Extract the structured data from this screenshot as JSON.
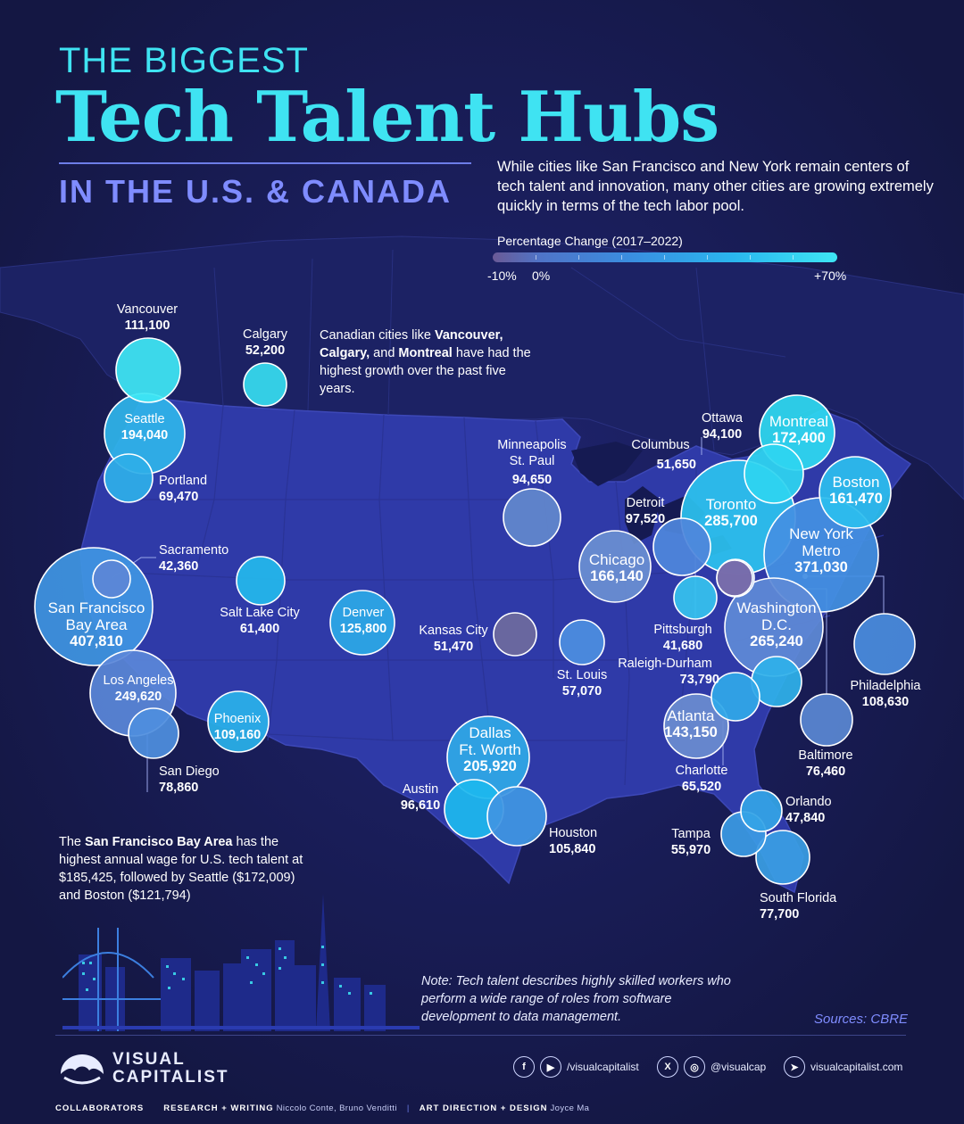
{
  "title": {
    "line1": "THE BIGGEST",
    "line2": "Tech Talent Hubs",
    "line3": "IN THE U.S. & CANADA"
  },
  "intro": "While cities like San Francisco and New York remain centers of tech talent and innovation, many other cities are growing extremely quickly in terms of the tech labor pool.",
  "legend": {
    "title": "Percentage Change (2017–2022)",
    "min_label": "-10%",
    "zero_label": "0%",
    "max_label": "+70%",
    "min_value": -10,
    "max_value": 70,
    "colors": [
      "#6a5a96",
      "#4f74c8",
      "#3a8ee0",
      "#2ab6ee",
      "#3ee6f4"
    ]
  },
  "notes": {
    "canada_pre": "Canadian cities like ",
    "canada_b1": "Vancouver,",
    "canada_b2": "Calgary,",
    "canada_mid": " and ",
    "canada_b3": "Montreal",
    "canada_post": " have had the highest growth over the past five years.",
    "sf_pre": "The ",
    "sf_bold": "San Francisco Bay Area",
    "sf_post": " has the highest annual wage for U.S. tech talent at $185,425, followed by Seattle ($172,009) and Boston ($121,794)"
  },
  "cities": [
    {
      "name": "Vancouver",
      "value": "111,100",
      "color": "#3ee6f4"
    },
    {
      "name": "Calgary",
      "value": "52,200",
      "color": "#36dcef"
    },
    {
      "name": "Seattle",
      "value": "194,040",
      "color": "#2fb4ea"
    },
    {
      "name": "Portland",
      "value": "69,470",
      "color": "#2eaee8"
    },
    {
      "name": "Sacramento",
      "value": "42,360",
      "color": "#5c86d6"
    },
    {
      "name": "San Francisco Bay Area",
      "value": "407,810",
      "color": "#3f94e2"
    },
    {
      "name": "Salt Lake City",
      "value": "61,400",
      "color": "#23b8ec"
    },
    {
      "name": "Denver",
      "value": "125,800",
      "color": "#2ca8e6"
    },
    {
      "name": "Los Angeles",
      "value": "249,620",
      "color": "#5a86d8"
    },
    {
      "name": "San Diego",
      "value": "78,860",
      "color": "#4f8ede"
    },
    {
      "name": "Phoenix",
      "value": "109,160",
      "color": "#2ab0ea"
    },
    {
      "name": "Minneapolis St. Paul",
      "value": "94,650",
      "color": "#6288cc"
    },
    {
      "name": "Kansas City",
      "value": "51,470",
      "color": "#6e6a9e"
    },
    {
      "name": "Chicago",
      "value": "166,140",
      "color": "#6b8fd2"
    },
    {
      "name": "St. Louis",
      "value": "57,070",
      "color": "#4c8ee0"
    },
    {
      "name": "Dallas Ft. Worth",
      "value": "205,920",
      "color": "#2fa8e6"
    },
    {
      "name": "Austin",
      "value": "96,610",
      "color": "#1db8ee"
    },
    {
      "name": "Houston",
      "value": "105,840",
      "color": "#3f96e2"
    },
    {
      "name": "Detroit",
      "value": "97,520",
      "color": "#4f86dc"
    },
    {
      "name": "Columbus",
      "value": "51,650",
      "color": "#36c2ee"
    },
    {
      "name": "Pittsburgh",
      "value": "41,680",
      "color": "#5a88d6"
    },
    {
      "name": "Toronto",
      "value": "285,700",
      "color": "#2cc2ee"
    },
    {
      "name": "Ottawa",
      "value": "94,100",
      "color": "#2ed4f0"
    },
    {
      "name": "Montreal",
      "value": "172,400",
      "color": "#2ed8f0"
    },
    {
      "name": "Boston",
      "value": "161,470",
      "color": "#2cbdee"
    },
    {
      "name": "New York Metro",
      "value": "371,030",
      "color": "#4490e2"
    },
    {
      "name": "Philadelphia",
      "value": "108,630",
      "color": "#4a8cde"
    },
    {
      "name": "Washington D.C.",
      "value": "265,240",
      "color": "#5f8ad6"
    },
    {
      "name": "Baltimore",
      "value": "76,460",
      "color": "#5a86d2"
    },
    {
      "name": "Raleigh-Durham",
      "value": "73,790",
      "color": "#2fb0ea"
    },
    {
      "name": "Atlanta",
      "value": "143,150",
      "color": "#6a8cd0"
    },
    {
      "name": "Charlotte",
      "value": "65,520",
      "color": "#30a8e8"
    },
    {
      "name": "Orlando",
      "value": "47,840",
      "color": "#34a4e6"
    },
    {
      "name": "Tampa",
      "value": "55,970",
      "color": "#3b9ae4"
    },
    {
      "name": "South Florida",
      "value": "77,700",
      "color": "#3a9ee4"
    },
    {
      "name": "Unlabeled hub",
      "value": "",
      "color": "#7a6aa8"
    }
  ],
  "labels": {
    "vancouver": {
      "name": "Vancouver",
      "value": "111,100"
    },
    "calgary": {
      "name": "Calgary",
      "value": "52,200"
    },
    "seattle": {
      "name": "Seattle",
      "value": "194,040"
    },
    "portland": {
      "name": "Portland",
      "value": "69,470"
    },
    "sacramento": {
      "name": "Sacramento",
      "value": "42,360"
    },
    "sf": {
      "name1": "San Francisco",
      "name2": "Bay Area",
      "value": "407,810"
    },
    "slc": {
      "name": "Salt Lake City",
      "value": "61,400"
    },
    "denver": {
      "name": "Denver",
      "value": "125,800"
    },
    "la": {
      "name": "Los Angeles",
      "value": "249,620"
    },
    "sandiego": {
      "name": "San Diego",
      "value": "78,860"
    },
    "phoenix": {
      "name": "Phoenix",
      "value": "109,160"
    },
    "minneapolis": {
      "name1": "Minneapolis",
      "name2": "St. Paul",
      "value": "94,650"
    },
    "kansas": {
      "name": "Kansas City",
      "value": "51,470"
    },
    "chicago": {
      "name": "Chicago",
      "value": "166,140"
    },
    "stlouis": {
      "name": "St. Louis",
      "value": "57,070"
    },
    "dallas": {
      "name1": "Dallas",
      "name2": "Ft. Worth",
      "value": "205,920"
    },
    "austin": {
      "name": "Austin",
      "value": "96,610"
    },
    "houston": {
      "name": "Houston",
      "value": "105,840"
    },
    "detroit": {
      "name": "Detroit",
      "value": "97,520"
    },
    "columbus": {
      "name": "Columbus",
      "value": "51,650"
    },
    "pittsburgh": {
      "name": "Pittsburgh",
      "value": "41,680"
    },
    "toronto": {
      "name": "Toronto",
      "value": "285,700"
    },
    "ottawa": {
      "name": "Ottawa",
      "value": "94,100"
    },
    "montreal": {
      "name": "Montreal",
      "value": "172,400"
    },
    "boston": {
      "name": "Boston",
      "value": "161,470"
    },
    "newyork": {
      "name1": "New York",
      "name2": "Metro",
      "value": "371,030"
    },
    "philadelphia": {
      "name": "Philadelphia",
      "value": "108,630"
    },
    "washington": {
      "name1": "Washington",
      "name2": "D.C.",
      "value": "265,240"
    },
    "baltimore": {
      "name": "Baltimore",
      "value": "76,460"
    },
    "raleigh": {
      "name": "Raleigh-Durham",
      "value": "73,790"
    },
    "atlanta": {
      "name": "Atlanta",
      "value": "143,150"
    },
    "charlotte": {
      "name": "Charlotte",
      "value": "65,520"
    },
    "orlando": {
      "name": "Orlando",
      "value": "47,840"
    },
    "tampa": {
      "name": "Tampa",
      "value": "55,970"
    },
    "southflorida": {
      "name": "South Florida",
      "value": "77,700"
    }
  },
  "footnote": "Note: Tech talent describes highly skilled workers who perform a wide range of roles from software development to data management.",
  "sources": "Sources: CBRE",
  "footer": {
    "logo_line1": "VISUAL",
    "logo_line2": "CAPITALIST",
    "social1": "/visualcapitalist",
    "social2": "@visualcap",
    "social3": "visualcapitalist.com",
    "icons": [
      "facebook-icon",
      "youtube-icon",
      "x-icon",
      "cursor-icon"
    ],
    "collab_label": "COLLABORATORS",
    "research_label": "RESEARCH + WRITING",
    "research_names": "Niccolo Conte, Bruno Venditti",
    "design_label": "ART DIRECTION + DESIGN",
    "design_names": "Joyce Ma"
  }
}
